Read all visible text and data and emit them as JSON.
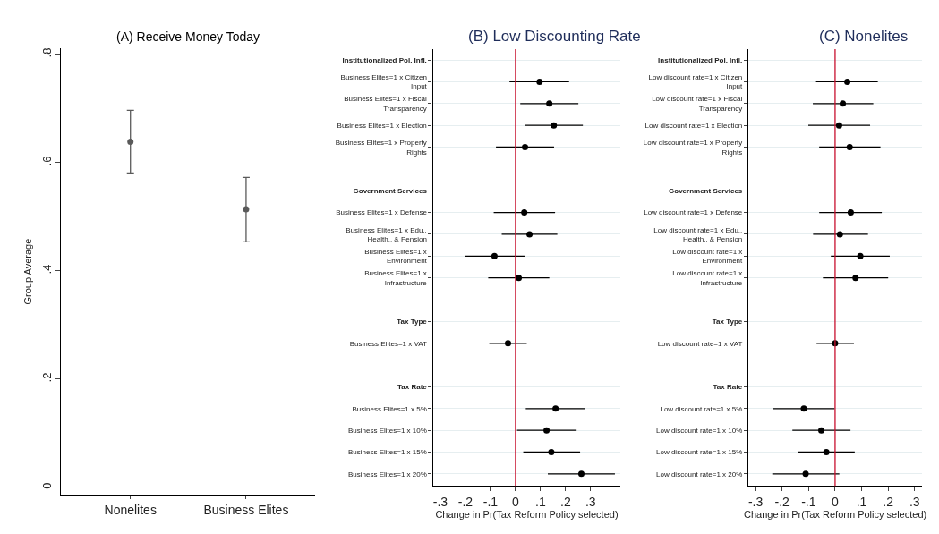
{
  "chart_data": [
    {
      "type": "scatter",
      "title": "(A) Receive Money Today",
      "ylabel": "Group Average",
      "categories": [
        "Nonelites",
        "Business Elites"
      ],
      "series": [
        {
          "color": "#5a5a5a",
          "values": [
            0.639,
            0.514
          ],
          "errors": [
            [
              0.581,
              0.697
            ],
            [
              0.454,
              0.573
            ]
          ]
        }
      ],
      "ylim": [
        -0.013,
        0.811
      ],
      "yticks": [
        0,
        {
          "value": 0.2,
          "label": ".2"
        },
        {
          "value": 0.4,
          "label": ".4"
        },
        {
          "value": 0.6,
          "label": ".6"
        },
        {
          "value": 0.8,
          "label": ".8"
        }
      ],
      "marker": "circle",
      "grid": false
    },
    {
      "type": "scatter",
      "orientation": "horizontal",
      "title": "(B) Low Discounting Rate",
      "xlabel": "Change in Pr(Tax Reform Policy selected)",
      "categories": [
        "Institutionalized Pol. Infl.",
        "Business Elites=1 x Citizen Input",
        "Business Elites=1 x Fiscal Transparency",
        "Business Elites=1 x Election",
        "Business Elites=1 x Property Rights",
        null,
        "Government Services",
        "Business Elites=1 x Defense",
        "Business Elites=1 x Edu., Health., & Pension",
        "Business Elites=1 x Environment",
        "Business Elites=1 x Infrastructure",
        null,
        "Tax Type",
        "Business Elites=1 x VAT",
        null,
        "Tax Rate",
        "Business Elites=1 x 5%",
        "Business Elites=1 x 10%",
        "Business Elites=1 x 15%",
        "Business Elites=1 x 20%"
      ],
      "series": [
        {
          "color": "#000000",
          "values": [
            null,
            0.096,
            0.135,
            0.153,
            0.038,
            null,
            null,
            0.035,
            0.056,
            -0.084,
            0.013,
            null,
            null,
            -0.03,
            null,
            null,
            0.16,
            0.124,
            0.143,
            0.263
          ],
          "errors": [
            null,
            [
              -0.024,
              0.214
            ],
            [
              0.019,
              0.251
            ],
            [
              0.037,
              0.269
            ],
            [
              -0.078,
              0.154
            ],
            null,
            null,
            [
              -0.087,
              0.158
            ],
            [
              -0.055,
              0.167
            ],
            [
              -0.202,
              0.036
            ],
            [
              -0.109,
              0.135
            ],
            null,
            null,
            [
              -0.105,
              0.045
            ],
            null,
            null,
            [
              0.041,
              0.278
            ],
            [
              0.006,
              0.244
            ],
            [
              0.031,
              0.258
            ],
            [
              0.129,
              0.397
            ]
          ]
        }
      ],
      "xlim": [
        -0.33,
        0.42
      ],
      "xticks": [
        {
          "value": -0.3,
          "label": "-.3"
        },
        {
          "value": -0.2,
          "label": "-.2"
        },
        {
          "value": -0.1,
          "label": "-.1"
        },
        0,
        {
          "value": 0.1,
          "label": ".1"
        },
        {
          "value": 0.2,
          "label": ".2"
        },
        {
          "value": 0.3,
          "label": ".3"
        }
      ],
      "ref_lines": [
        {
          "axis": "x",
          "value": 0,
          "color": "#c8102e"
        }
      ],
      "marker": "circle",
      "grid": "y"
    },
    {
      "type": "scatter",
      "orientation": "horizontal",
      "title": "(C) Nonelites",
      "xlabel": "Change in Pr(Tax Reform Policy selected)",
      "categories": [
        "Institutionalized Pol. Infl.",
        "Low discount rate=1 x Citizen Input",
        "Low discount rate=1 x Fiscal Transparency",
        "Low discount rate=1 x Election",
        "Low discount rate=1 x Property Rights",
        null,
        "Government Services",
        "Low discount rate=1 x Defense",
        "Low discount rate=1 x Edu., Health., & Pension",
        "Low discount rate=1 x Environment",
        "Low discount rate=1 x Infrastructure",
        null,
        "Tax Type",
        "Low discount rate=1 x VAT",
        null,
        "Tax Rate",
        "Low discount rate=1 x 5%",
        "Low discount rate=1 x 10%",
        "Low discount rate=1 x 15%",
        "Low discount rate=1 x 20%"
      ],
      "series": [
        {
          "color": "#000000",
          "values": [
            null,
            0.046,
            0.029,
            0.015,
            0.055,
            null,
            null,
            0.059,
            0.018,
            0.095,
            0.077,
            null,
            null,
            0,
            null,
            null,
            -0.118,
            -0.052,
            -0.033,
            -0.111
          ],
          "errors": [
            null,
            [
              -0.072,
              0.161
            ],
            [
              -0.084,
              0.144
            ],
            [
              -0.101,
              0.132
            ],
            [
              -0.06,
              0.171
            ],
            null,
            null,
            [
              -0.06,
              0.176
            ],
            [
              -0.083,
              0.124
            ],
            [
              -0.016,
              0.206
            ],
            [
              -0.046,
              0.2
            ],
            null,
            null,
            [
              -0.07,
              0.071
            ],
            null,
            null,
            [
              -0.234,
              -0.002
            ],
            [
              -0.161,
              0.058
            ],
            [
              -0.14,
              0.074
            ],
            [
              -0.237,
              0.016
            ]
          ]
        }
      ],
      "xlim": [
        -0.327,
        0.328
      ],
      "xticks": [
        {
          "value": -0.3,
          "label": "-.3"
        },
        {
          "value": -0.2,
          "label": "-.2"
        },
        {
          "value": -0.1,
          "label": "-.1"
        },
        0,
        {
          "value": 0.1,
          "label": ".1"
        },
        {
          "value": 0.2,
          "label": ".2"
        },
        {
          "value": 0.3,
          "label": ".3"
        }
      ],
      "ref_lines": [
        {
          "axis": "x",
          "value": 0,
          "color": "#c8102e"
        }
      ],
      "marker": "circle",
      "grid": "y"
    }
  ]
}
